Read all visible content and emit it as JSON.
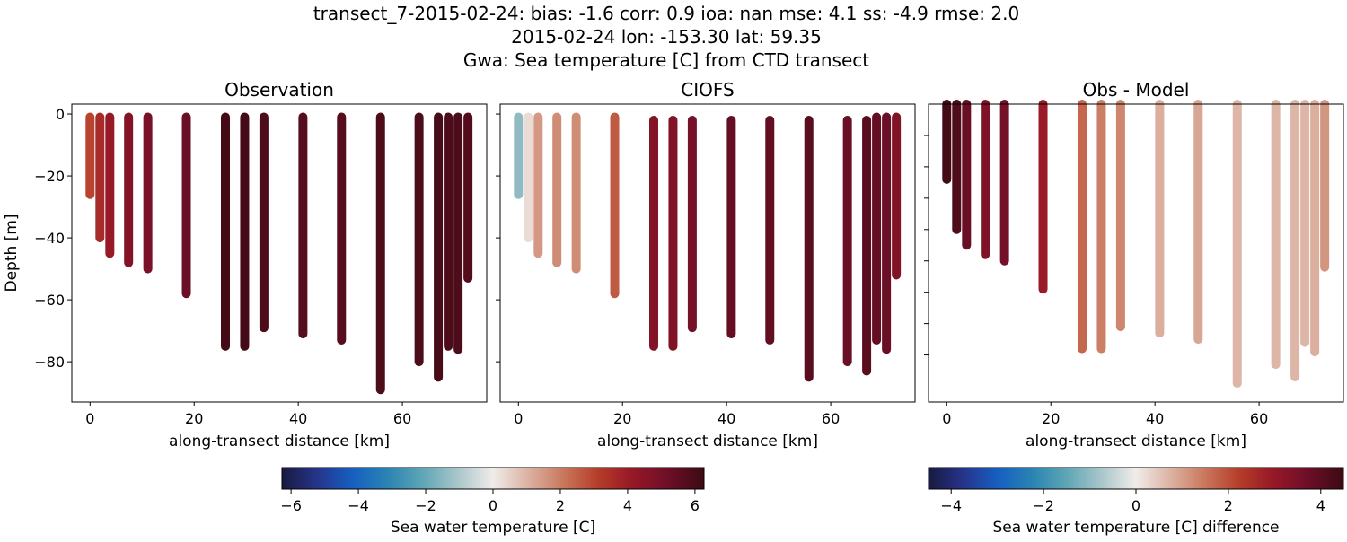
{
  "title_lines": [
    "transect_7-2015-02-24: bias: -1.6  corr: 0.9  ioa: nan  mse: 4.1  ss: -4.9  rmse: 2.0",
    "2015-02-24 lon: -153.30 lat: 59.35",
    "Gwa: Sea temperature [C] from CTD transect"
  ],
  "chart_data": [
    {
      "type": "scatter",
      "title": "Observation",
      "xlabel": "along-transect distance [km]",
      "ylabel": "Depth [m]",
      "xlim": [
        -3.5,
        76.2
      ],
      "ylim": [
        -93,
        3.2
      ],
      "xticks": [
        {
          "v": 0,
          "label": "0"
        },
        {
          "v": 20,
          "label": "20"
        },
        {
          "v": 40,
          "label": "40"
        },
        {
          "v": 60,
          "label": "60"
        }
      ],
      "yticks": [
        {
          "v": 0,
          "label": "0"
        },
        {
          "v": -20,
          "label": "−20"
        },
        {
          "v": -40,
          "label": "−40"
        },
        {
          "v": -60,
          "label": "−60"
        },
        {
          "v": -80,
          "label": "−80"
        }
      ],
      "colorbar": 0,
      "stations": [
        {
          "x": 0,
          "top": -1,
          "bottom": -26,
          "value": 3.0
        },
        {
          "x": 1.9,
          "top": -1,
          "bottom": -40,
          "value": 3.6
        },
        {
          "x": 3.8,
          "top": -1,
          "bottom": -45,
          "value": 4.1
        },
        {
          "x": 7.4,
          "top": -1,
          "bottom": -48,
          "value": 4.6
        },
        {
          "x": 11.1,
          "top": -1,
          "bottom": -50,
          "value": 4.9
        },
        {
          "x": 18.5,
          "top": -1,
          "bottom": -58,
          "value": 5.3
        },
        {
          "x": 26.0,
          "top": -1,
          "bottom": -75,
          "value": 6.1
        },
        {
          "x": 29.7,
          "top": -1,
          "bottom": -75,
          "value": 6.1
        },
        {
          "x": 33.4,
          "top": -1,
          "bottom": -69,
          "value": 5.9
        },
        {
          "x": 40.9,
          "top": -1,
          "bottom": -71,
          "value": 5.7
        },
        {
          "x": 48.3,
          "top": -1,
          "bottom": -73,
          "value": 5.7
        },
        {
          "x": 55.8,
          "top": -1,
          "bottom": -89,
          "value": 5.9
        },
        {
          "x": 63.2,
          "top": -1,
          "bottom": -80,
          "value": 5.9
        },
        {
          "x": 66.9,
          "top": -1,
          "bottom": -85,
          "value": 6.0
        },
        {
          "x": 68.8,
          "top": -1,
          "bottom": -75,
          "value": 5.9
        },
        {
          "x": 70.7,
          "top": -1,
          "bottom": -76,
          "value": 5.9
        },
        {
          "x": 72.6,
          "top": -1,
          "bottom": -53,
          "value": 5.8
        }
      ]
    },
    {
      "type": "scatter",
      "title": "CIOFS",
      "xlabel": "along-transect distance [km]",
      "xlim": [
        -3.5,
        76.2
      ],
      "ylim": [
        -93,
        3.2
      ],
      "xticks": [
        {
          "v": 0,
          "label": "0"
        },
        {
          "v": 20,
          "label": "20"
        },
        {
          "v": 40,
          "label": "40"
        },
        {
          "v": 60,
          "label": "60"
        }
      ],
      "yticks": [
        {
          "v": 0
        },
        {
          "v": -20
        },
        {
          "v": -40
        },
        {
          "v": -60
        },
        {
          "v": -80
        }
      ],
      "colorbar": 0,
      "stations": [
        {
          "x": 0,
          "top": -1,
          "bottom": -26,
          "value": -1.4
        },
        {
          "x": 1.9,
          "top": -1,
          "bottom": -40,
          "value": 0.3
        },
        {
          "x": 3.8,
          "top": -1,
          "bottom": -45,
          "value": 1.5
        },
        {
          "x": 7.4,
          "top": -1,
          "bottom": -48,
          "value": 1.7
        },
        {
          "x": 11.1,
          "top": -1,
          "bottom": -50,
          "value": 1.7
        },
        {
          "x": 18.5,
          "top": -1,
          "bottom": -58,
          "value": 2.6
        },
        {
          "x": 26.0,
          "top": -2,
          "bottom": -75,
          "value": 4.6
        },
        {
          "x": 29.7,
          "top": -2,
          "bottom": -75,
          "value": 4.7
        },
        {
          "x": 33.4,
          "top": -2,
          "bottom": -69,
          "value": 5.0
        },
        {
          "x": 40.9,
          "top": -2,
          "bottom": -71,
          "value": 5.4
        },
        {
          "x": 48.3,
          "top": -2,
          "bottom": -73,
          "value": 5.4
        },
        {
          "x": 55.8,
          "top": -2,
          "bottom": -85,
          "value": 5.6
        },
        {
          "x": 63.2,
          "top": -2,
          "bottom": -80,
          "value": 5.3
        },
        {
          "x": 66.9,
          "top": -2,
          "bottom": -83,
          "value": 5.6
        },
        {
          "x": 68.8,
          "top": -1,
          "bottom": -73,
          "value": 5.4
        },
        {
          "x": 70.7,
          "top": -1,
          "bottom": -76,
          "value": 5.3
        },
        {
          "x": 72.6,
          "top": -1,
          "bottom": -52,
          "value": 4.7
        }
      ]
    },
    {
      "type": "scatter",
      "title": "Obs - Model",
      "xlabel": "along-transect distance [km]",
      "xlim": [
        -3.5,
        76.2
      ],
      "ylim": [
        -95,
        0
      ],
      "xticks": [
        {
          "v": 0,
          "label": "0"
        },
        {
          "v": 20,
          "label": "20"
        },
        {
          "v": 40,
          "label": "40"
        },
        {
          "v": 60,
          "label": "60"
        }
      ],
      "yticks": [
        {
          "v": -10
        },
        {
          "v": -20
        },
        {
          "v": -30
        },
        {
          "v": -40
        },
        {
          "v": -50
        },
        {
          "v": -60
        },
        {
          "v": -70
        },
        {
          "v": -80
        }
      ],
      "colorbar": 1,
      "stations": [
        {
          "x": 0,
          "top": 0,
          "bottom": -24,
          "value": 4.4
        },
        {
          "x": 1.9,
          "top": 0,
          "bottom": -40,
          "value": 4.2
        },
        {
          "x": 3.8,
          "top": 0,
          "bottom": -45,
          "value": 3.8
        },
        {
          "x": 7.4,
          "top": 0,
          "bottom": -48,
          "value": 3.4
        },
        {
          "x": 11.1,
          "top": 0,
          "bottom": -50,
          "value": 3.6
        },
        {
          "x": 18.5,
          "top": 0,
          "bottom": -59,
          "value": 2.9
        },
        {
          "x": 26.0,
          "top": 0,
          "bottom": -78,
          "value": 1.7
        },
        {
          "x": 29.7,
          "top": 0,
          "bottom": -78,
          "value": 1.4
        },
        {
          "x": 33.4,
          "top": 0,
          "bottom": -71,
          "value": 1.3
        },
        {
          "x": 40.9,
          "top": 0,
          "bottom": -73,
          "value": 0.8
        },
        {
          "x": 48.3,
          "top": 0,
          "bottom": -75,
          "value": 0.9
        },
        {
          "x": 55.8,
          "top": 0,
          "bottom": -89,
          "value": 0.7
        },
        {
          "x": 63.2,
          "top": 0,
          "bottom": -83,
          "value": 0.7
        },
        {
          "x": 66.9,
          "top": 0,
          "bottom": -87,
          "value": 0.7
        },
        {
          "x": 68.8,
          "top": 0,
          "bottom": -76,
          "value": 0.7
        },
        {
          "x": 70.7,
          "top": 0,
          "bottom": -79,
          "value": 0.8
        },
        {
          "x": 72.6,
          "top": 0,
          "bottom": -52,
          "value": 1.1
        }
      ]
    }
  ],
  "colorbars": [
    {
      "label": "Sea water temperature [C]",
      "range": [
        -6.27,
        6.27
      ],
      "ticks": [
        {
          "v": -6,
          "label": "−6"
        },
        {
          "v": -4,
          "label": "−4"
        },
        {
          "v": -2,
          "label": "−2"
        },
        {
          "v": 0,
          "label": "0"
        },
        {
          "v": 2,
          "label": "2"
        },
        {
          "v": 4,
          "label": "4"
        },
        {
          "v": 6,
          "label": "6"
        }
      ]
    },
    {
      "label": "Sea water temperature [C] difference",
      "range": [
        -4.49,
        4.49
      ],
      "ticks": [
        {
          "v": -4,
          "label": "−4"
        },
        {
          "v": -2,
          "label": "−2"
        },
        {
          "v": 0,
          "label": "0"
        },
        {
          "v": 2,
          "label": "2"
        },
        {
          "v": 4,
          "label": "4"
        }
      ]
    }
  ],
  "colormap": [
    "#171a3f",
    "#27338a",
    "#1560c2",
    "#2a83b2",
    "#5ea6b5",
    "#a9c6ca",
    "#f0ecea",
    "#dcb2a2",
    "#c9775c",
    "#b53c28",
    "#951627",
    "#6c0f28",
    "#3c0a12"
  ]
}
